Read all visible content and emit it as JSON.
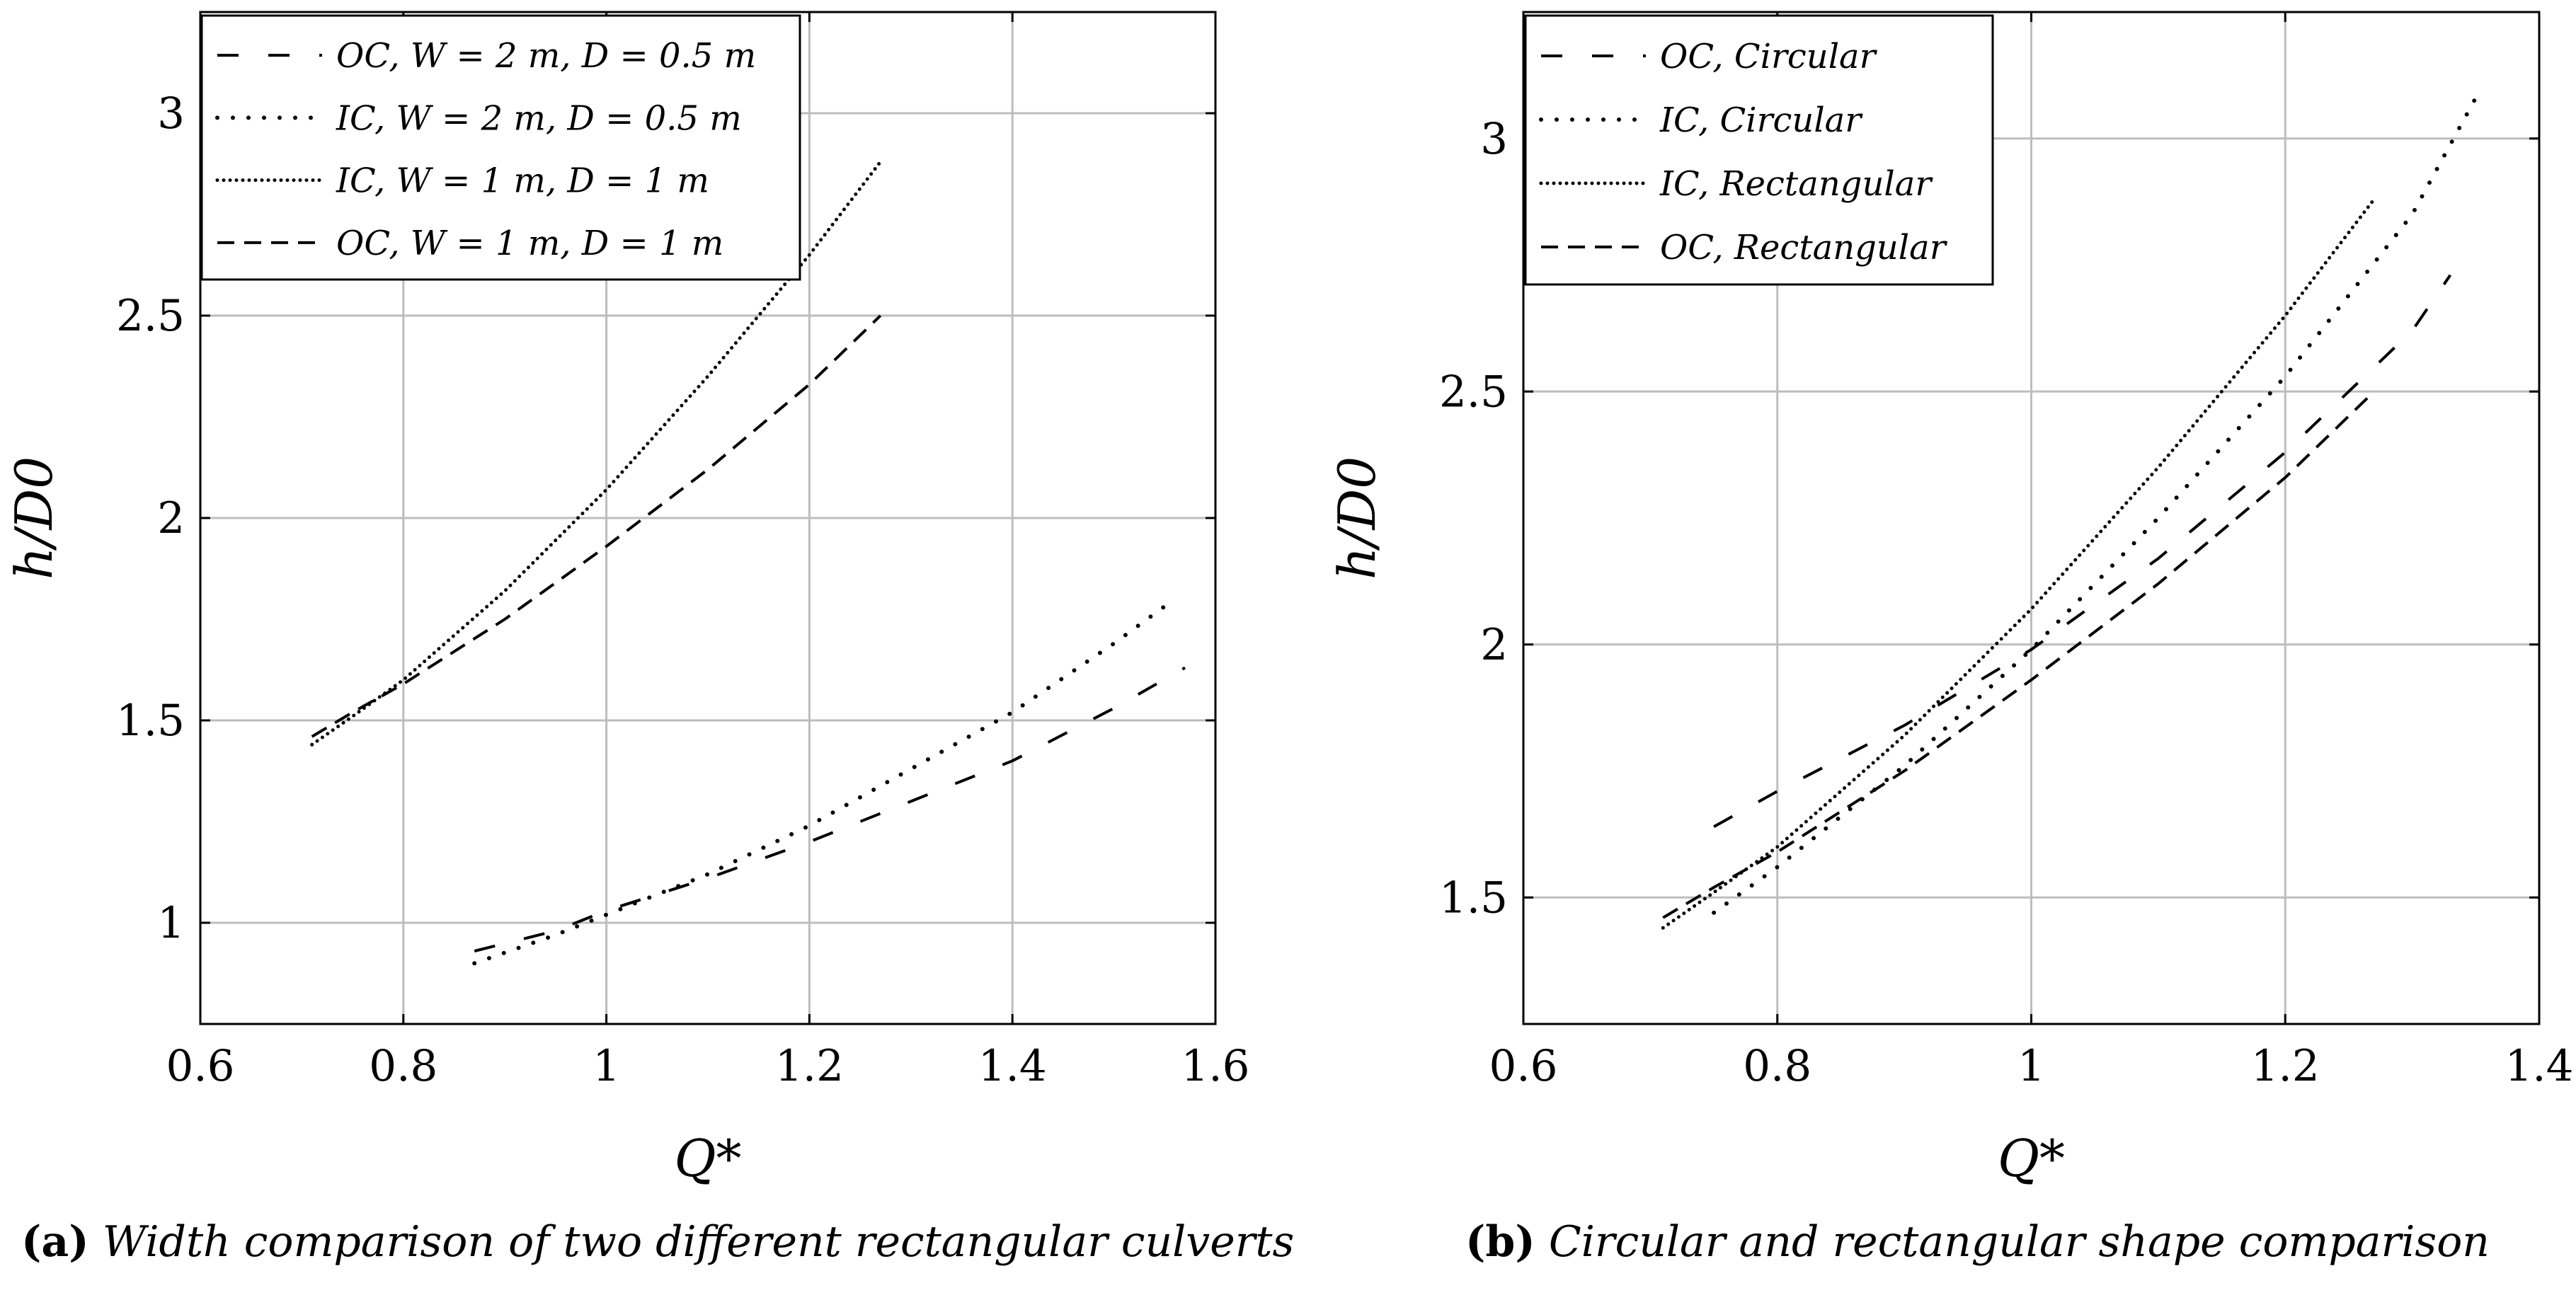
{
  "chart_data": [
    {
      "type": "line",
      "panel": "a",
      "xlabel": "Q*",
      "ylabel": "h/D0",
      "xlim": [
        0.6,
        1.6
      ],
      "ylim": [
        0.75,
        3.25
      ],
      "xticks": [
        0.6,
        0.8,
        1,
        1.2,
        1.4,
        1.6
      ],
      "xtick_labels": [
        "0.6",
        "0.8",
        "1",
        "1.2",
        "1.4",
        "1.6"
      ],
      "yticks": [
        1,
        1.5,
        2,
        2.5,
        3
      ],
      "ytick_labels": [
        "1",
        "1.5",
        "2",
        "2.5",
        "3"
      ],
      "grid": true,
      "legend_position": "top-left",
      "series": [
        {
          "name": "OC, W = 2 m, D = 0.5 m",
          "style": "loose-dash",
          "x": [
            0.87,
            0.95,
            1.0,
            1.1,
            1.2,
            1.3,
            1.4,
            1.5,
            1.57
          ],
          "y": [
            0.93,
            0.98,
            1.03,
            1.11,
            1.2,
            1.3,
            1.4,
            1.53,
            1.63
          ]
        },
        {
          "name": "IC, W = 2 m, D = 0.5 m",
          "style": "loose-dot",
          "x": [
            0.87,
            0.95,
            1.0,
            1.1,
            1.2,
            1.3,
            1.4,
            1.5,
            1.56
          ],
          "y": [
            0.9,
            0.97,
            1.02,
            1.12,
            1.24,
            1.38,
            1.52,
            1.69,
            1.8
          ]
        },
        {
          "name": "IC, W = 1 m, D = 1 m",
          "style": "dense-dot",
          "x": [
            0.71,
            0.75,
            0.8,
            0.9,
            1.0,
            1.1,
            1.2,
            1.27
          ],
          "y": [
            1.44,
            1.51,
            1.6,
            1.82,
            2.07,
            2.35,
            2.65,
            2.88
          ]
        },
        {
          "name": "OC, W = 1 m, D = 1 m",
          "style": "dash",
          "x": [
            0.71,
            0.75,
            0.8,
            0.9,
            1.0,
            1.1,
            1.2,
            1.27
          ],
          "y": [
            1.46,
            1.52,
            1.59,
            1.75,
            1.93,
            2.12,
            2.33,
            2.5
          ]
        }
      ],
      "caption_label": "(a)",
      "caption": "Width comparison of two different rectangular culverts"
    },
    {
      "type": "line",
      "panel": "b",
      "xlabel": "Q*",
      "ylabel": "h/D0",
      "xlim": [
        0.6,
        1.4
      ],
      "ylim": [
        1.25,
        3.25
      ],
      "xticks": [
        0.6,
        0.8,
        1,
        1.2,
        1.4
      ],
      "xtick_labels": [
        "0.6",
        "0.8",
        "1",
        "1.2",
        "1.4"
      ],
      "yticks": [
        1.5,
        2,
        2.5,
        3
      ],
      "ytick_labels": [
        "1.5",
        "2",
        "2.5",
        "3"
      ],
      "grid": true,
      "legend_position": "top-left",
      "series": [
        {
          "name": "OC, Circular",
          "style": "loose-dash",
          "x": [
            0.75,
            0.8,
            0.9,
            1.0,
            1.1,
            1.2,
            1.3,
            1.33
          ],
          "y": [
            1.64,
            1.71,
            1.84,
            1.99,
            2.17,
            2.38,
            2.62,
            2.73
          ]
        },
        {
          "name": "IC, Circular",
          "style": "loose-dot",
          "x": [
            0.75,
            0.8,
            0.9,
            1.0,
            1.1,
            1.2,
            1.3,
            1.35
          ],
          "y": [
            1.47,
            1.56,
            1.76,
            1.99,
            2.25,
            2.53,
            2.85,
            3.08
          ]
        },
        {
          "name": "IC, Rectangular",
          "style": "dense-dot",
          "x": [
            0.71,
            0.75,
            0.8,
            0.9,
            1.0,
            1.1,
            1.2,
            1.27
          ],
          "y": [
            1.44,
            1.51,
            1.6,
            1.82,
            2.07,
            2.35,
            2.65,
            2.88
          ]
        },
        {
          "name": "OC, Rectangular",
          "style": "dash",
          "x": [
            0.71,
            0.75,
            0.8,
            0.9,
            1.0,
            1.1,
            1.2,
            1.27
          ],
          "y": [
            1.46,
            1.52,
            1.59,
            1.75,
            1.93,
            2.12,
            2.33,
            2.5
          ]
        }
      ],
      "caption_label": "(b)",
      "caption": "Circular and rectangular shape comparison"
    }
  ]
}
